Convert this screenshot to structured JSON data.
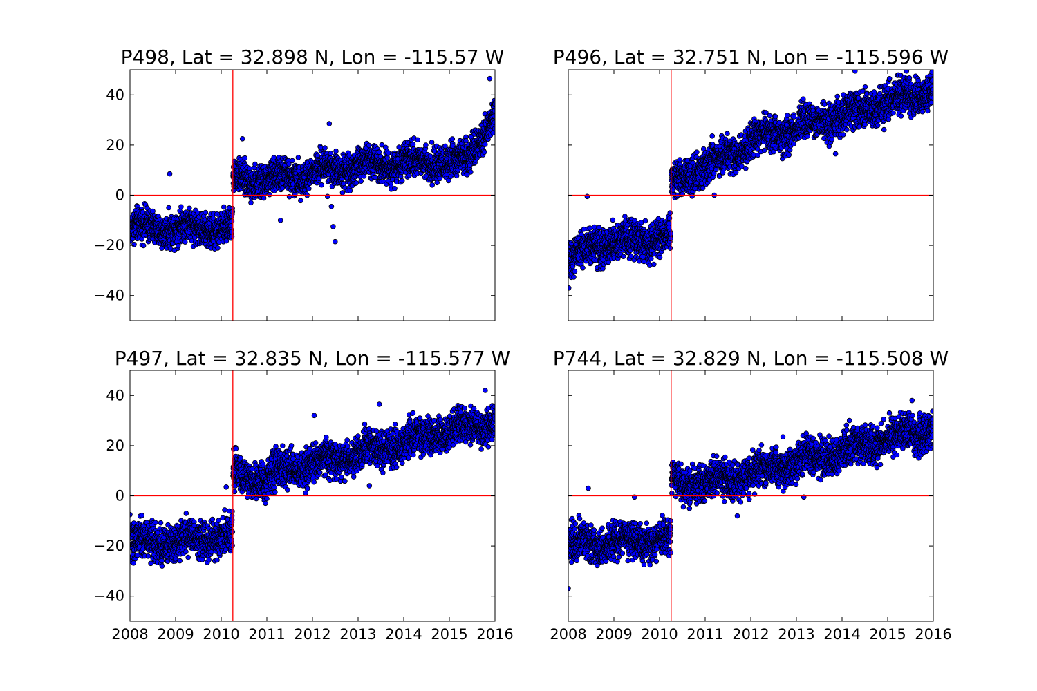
{
  "figure": {
    "background": "#ffffff",
    "point_color": "#0000ff",
    "point_edge_color": "#000000",
    "reference_line_color": "#ff0000"
  },
  "chart_data": [
    {
      "type": "scatter",
      "title": "P498, Lat = 32.898 N, Lon = -115.57 W",
      "xlim": [
        "2008-01-01",
        "2016-01-01"
      ],
      "ylim": [
        -50,
        50
      ],
      "xticks": [
        "2008",
        "2009",
        "2010",
        "2011",
        "2012",
        "2013",
        "2014",
        "2015",
        "2016"
      ],
      "xticklabels_visible": false,
      "yticks": [
        40,
        20,
        0,
        -20,
        -40
      ],
      "yticklabels": [
        "40",
        "20",
        "0",
        "−20",
        "−40"
      ],
      "yticklabels_visible": true,
      "reference_lines": {
        "x": "2010-04-04",
        "y": 0
      },
      "trend": [
        {
          "start": "2008-01-01",
          "end": "2010-04-01",
          "from": -13,
          "to": -13
        },
        {
          "start": "2010-04-05",
          "end": "2011-01-01",
          "from": 7,
          "to": 6
        },
        {
          "start": "2011-01-01",
          "end": "2013-01-01",
          "from": 6,
          "to": 12
        },
        {
          "start": "2013-01-01",
          "end": "2015-06-01",
          "from": 12,
          "to": 14
        },
        {
          "start": "2015-06-01",
          "end": "2016-01-01",
          "from": 14,
          "to": 33
        }
      ],
      "scatter_half_range": 5,
      "outliers": [
        [
          "2008-11-15",
          8.5
        ],
        [
          "2010-06-20",
          22.5
        ],
        [
          "2011-04-20",
          -10
        ],
        [
          "2012-05-15",
          28.5
        ],
        [
          "2012-06-01",
          -4.5
        ],
        [
          "2012-06-15",
          -12.5
        ],
        [
          "2012-07-01",
          -18.5
        ],
        [
          "2012-05-01",
          -0.5
        ],
        [
          "2015-11-20",
          46.5
        ]
      ]
    },
    {
      "type": "scatter",
      "title": "P496, Lat = 32.751 N, Lon = -115.596 W",
      "xlim": [
        "2008-01-01",
        "2016-01-01"
      ],
      "ylim": [
        -50,
        50
      ],
      "xticks": [
        "2008",
        "2009",
        "2010",
        "2011",
        "2012",
        "2013",
        "2014",
        "2015",
        "2016"
      ],
      "xticklabels_visible": false,
      "yticks": [
        40,
        20,
        0,
        -20,
        -40
      ],
      "yticklabels_visible": false,
      "reference_lines": {
        "x": "2010-04-04",
        "y": 0
      },
      "trend": [
        {
          "start": "2008-01-01",
          "end": "2008-07-01",
          "from": -27,
          "to": -20
        },
        {
          "start": "2008-07-01",
          "end": "2010-04-01",
          "from": -20,
          "to": -16
        },
        {
          "start": "2010-04-05",
          "end": "2012-01-01",
          "from": 5,
          "to": 20
        },
        {
          "start": "2012-01-01",
          "end": "2016-01-01",
          "from": 22,
          "to": 42
        }
      ],
      "scatter_half_range": 5.5,
      "outliers": [
        [
          "2008-01-05",
          -37
        ],
        [
          "2008-06-01",
          -0.5
        ],
        [
          "2009-10-15",
          -28
        ],
        [
          "2011-03-15",
          0
        ],
        [
          "2012-10-15",
          28
        ],
        [
          "2013-11-10",
          16.5
        ],
        [
          "2014-04-15",
          49.5
        ],
        [
          "2015-06-01",
          49.5
        ]
      ]
    },
    {
      "type": "scatter",
      "title": "P497, Lat = 32.835 N, Lon = -115.577 W",
      "xlim": [
        "2008-01-01",
        "2016-01-01"
      ],
      "ylim": [
        -50,
        50
      ],
      "xticks": [
        "2008",
        "2009",
        "2010",
        "2011",
        "2012",
        "2013",
        "2014",
        "2015",
        "2016"
      ],
      "xticklabels": [
        "2008",
        "2009",
        "2010",
        "2011",
        "2012",
        "2013",
        "2014",
        "2015",
        "2016"
      ],
      "xticklabels_visible": true,
      "yticks": [
        40,
        20,
        0,
        -20,
        -40
      ],
      "yticklabels": [
        "40",
        "20",
        "0",
        "−20",
        "−40"
      ],
      "yticklabels_visible": true,
      "reference_lines": {
        "x": "2010-04-04",
        "y": 0
      },
      "trend": [
        {
          "start": "2008-01-01",
          "end": "2010-04-01",
          "from": -19,
          "to": -16
        },
        {
          "start": "2010-04-05",
          "end": "2011-01-01",
          "from": 9,
          "to": 6
        },
        {
          "start": "2011-01-01",
          "end": "2016-01-01",
          "from": 8,
          "to": 30
        }
      ],
      "scatter_half_range": 5.5,
      "outliers": [
        [
          "2008-01-01",
          -7.5
        ],
        [
          "2008-09-15",
          -28
        ],
        [
          "2010-02-10",
          3.5
        ],
        [
          "2012-01-15",
          32
        ],
        [
          "2013-04-01",
          4
        ],
        [
          "2013-06-20",
          36.5
        ],
        [
          "2015-10-15",
          42
        ]
      ]
    },
    {
      "type": "scatter",
      "title": "P744, Lat = 32.829 N, Lon = -115.508 W",
      "xlim": [
        "2008-01-01",
        "2016-01-01"
      ],
      "ylim": [
        -50,
        50
      ],
      "xticks": [
        "2008",
        "2009",
        "2010",
        "2011",
        "2012",
        "2013",
        "2014",
        "2015",
        "2016"
      ],
      "xticklabels": [
        "2008",
        "2009",
        "2010",
        "2011",
        "2012",
        "2013",
        "2014",
        "2015",
        "2016"
      ],
      "xticklabels_visible": true,
      "yticks": [
        40,
        20,
        0,
        -20,
        -40
      ],
      "yticklabels_visible": false,
      "reference_lines": {
        "x": "2010-04-04",
        "y": 0
      },
      "trend": [
        {
          "start": "2008-01-01",
          "end": "2010-04-01",
          "from": -19,
          "to": -18
        },
        {
          "start": "2010-04-05",
          "end": "2011-06-01",
          "from": 5,
          "to": 6
        },
        {
          "start": "2011-06-01",
          "end": "2016-01-01",
          "from": 6,
          "to": 27
        }
      ],
      "scatter_half_range": 5.5,
      "outliers": [
        [
          "2008-01-01",
          -37
        ],
        [
          "2008-06-10",
          3
        ],
        [
          "2009-06-15",
          -0.5
        ],
        [
          "2011-09-15",
          -8
        ],
        [
          "2012-09-15",
          23.5
        ],
        [
          "2013-03-01",
          -0.5
        ],
        [
          "2014-03-01",
          30
        ],
        [
          "2015-01-15",
          33
        ],
        [
          "2015-07-15",
          38
        ]
      ]
    }
  ]
}
